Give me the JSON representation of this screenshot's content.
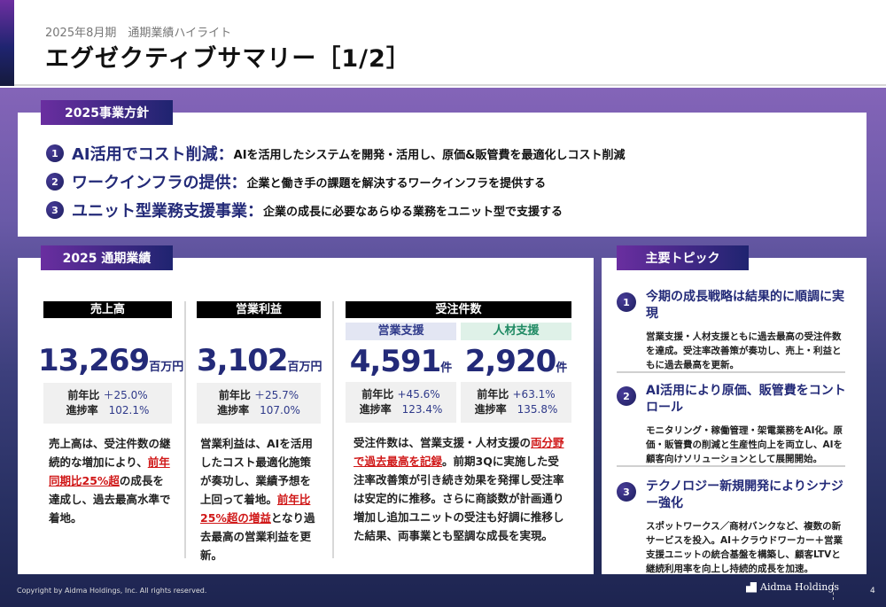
{
  "header": {
    "subtitle": "2025年8月期　通期業績ハイライト",
    "title": "エグゼクティブサマリー［1/2］"
  },
  "policy": {
    "label": "2025事業方針",
    "items": [
      {
        "num": "1",
        "heading": "AI活用でコスト削減：",
        "desc": "AIを活用したシステムを開発・活用し、原価&販管費を最適化しコスト削減"
      },
      {
        "num": "2",
        "heading": "ワークインフラの提供：",
        "desc": "企業と働き手の課題を解決するワークインフラを提供する"
      },
      {
        "num": "3",
        "heading": "ユニット型業務支援事業：",
        "desc": "企業の成長に必要なあらゆる業務をユニット型で支援する"
      }
    ]
  },
  "results": {
    "label": "2025 通期業績",
    "sales": {
      "title": "売上高",
      "value": "13,269",
      "unit": "百万円",
      "yoy_label": "前年比",
      "yoy": "＋25.0%",
      "progress_label": "進捗率",
      "progress": "102.1%",
      "desc": [
        "売上高は、受注件数の継続的な増加により、",
        "前年同期比25%超",
        "の成長を達成し、過去最高水準で着地。"
      ]
    },
    "profit": {
      "title": "営業利益",
      "value": "3,102",
      "unit": "百万円",
      "yoy_label": "前年比",
      "yoy": "＋25.7%",
      "progress_label": "進捗率",
      "progress": "107.0%",
      "desc": [
        "営業利益は、AIを活用したコスト最適化施策が奏功し、業績予想を上回って着地。",
        "前年比25%超の増益",
        "となり過去最高の営業利益を更新。"
      ]
    },
    "orders": {
      "title": "受注件数",
      "sales_support": {
        "title": "営業支援",
        "value": "4,591",
        "unit": "件",
        "yoy_label": "前年比",
        "yoy": "+45.6%",
        "progress_label": "進捗率",
        "progress": "123.4%"
      },
      "hr_support": {
        "title": "人材支援",
        "value": "2,920",
        "unit": "件",
        "yoy_label": "前年比",
        "yoy": "+63.1%",
        "progress_label": "進捗率",
        "progress": "135.8%"
      },
      "desc": [
        "受注件数は、営業支援・人材支援の",
        "両分野で過去最高を記録",
        "。前期3Qに実施した受注率改善策が引き続き効果を発揮し受注率は安定的に推移。さらに商談数が計画通り増加し追加ユニットの受注も好調に推移した結果、両事業とも堅調な成長を実現。"
      ]
    }
  },
  "topics": {
    "label": "主要トピック",
    "items": [
      {
        "num": "1",
        "heading": "今期の成長戦略は結果的に順調に実現",
        "desc": "営業支援・人材支援ともに過去最高の受注件数を達成。受注率改善策が奏功し、売上・利益ともに過去最高を更新。"
      },
      {
        "num": "2",
        "heading": "AI活用により原価、販管費をコントロール",
        "desc": "モニタリング・稼働管理・架電業務をAI化。原価・販管費の削減と生産性向上を両立し、AIを顧客向けソリューションとして展開開始。"
      },
      {
        "num": "3",
        "heading": "テクノロジー新規開発によりシナジー強化",
        "desc": "スポットワークス／商材バンクなど、複数の新サービスを投入。AI＋クラウドワーカー＋営業支援ユニットの統合基盤を構築し、顧客LTVと継続利用率を向上し持続的成長を加速。"
      }
    ]
  },
  "footer": {
    "copyright": "Copyright by Aidma Holdings, Inc. All rights reserved.",
    "logo": "Aidma Holdings",
    "page": "4"
  },
  "colors": {
    "navy": "#232a78",
    "red": "#d01818",
    "purple": "#6a2ea0"
  }
}
